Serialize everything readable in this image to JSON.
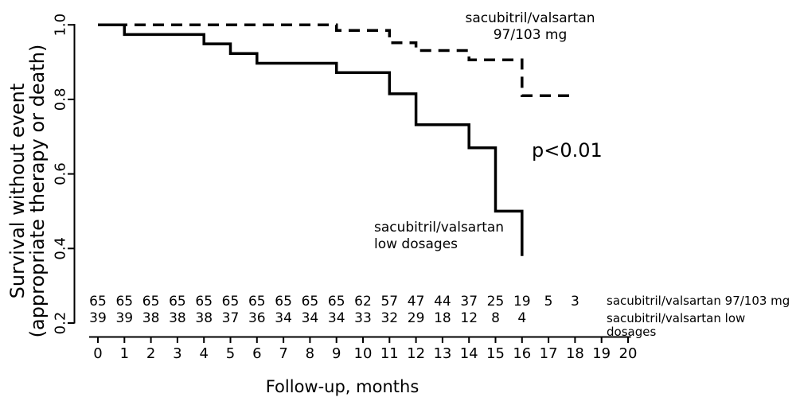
{
  "figure": {
    "background": "#ffffff",
    "ink": "#000000",
    "y_axis": {
      "label_line1": "Survival without event",
      "label_line2": "(appropriate therapy or death)",
      "tick_labels": [
        "1.0",
        "0.8",
        "0.6",
        "0.4",
        "0.2"
      ]
    },
    "x_axis": {
      "label": "Follow-up, months"
    },
    "annotations": {
      "dashed_line1": "sacubitril/valsartan",
      "dashed_line2": "97/103 mg",
      "solid_line1": "sacubitril/valsartan",
      "solid_line2": "low dosages",
      "p_value": "p<0.01"
    },
    "at_risk": {
      "row1_label": "sacubitril/valsartan 97/103 mg",
      "row2_label": "sacubitril/valsartan low dosages"
    }
  },
  "chart_data": {
    "type": "line",
    "subtype": "kaplan_meier_step",
    "title": "",
    "xlabel": "Follow-up, months",
    "ylabel": "Survival without event (appropriate therapy or death)",
    "xlim": [
      0,
      20
    ],
    "ylim": [
      0.2,
      1.0
    ],
    "x_ticks": [
      0,
      1,
      2,
      3,
      4,
      5,
      6,
      7,
      8,
      9,
      10,
      11,
      12,
      13,
      14,
      15,
      16,
      17,
      18,
      19,
      20
    ],
    "y_ticks": [
      1.0,
      0.8,
      0.6,
      0.4,
      0.2
    ],
    "grid": false,
    "legend_position": "inline-annotations",
    "p_value": "p<0.01",
    "series": [
      {
        "name": "sacubitril/valsartan 97/103 mg",
        "line_style": "dashed",
        "color": "#000000",
        "steps": [
          [
            0,
            1.0
          ],
          [
            9,
            0.985
          ],
          [
            11,
            0.952
          ],
          [
            12,
            0.931
          ],
          [
            14,
            0.906
          ],
          [
            16,
            0.81
          ]
        ],
        "end_month": 18
      },
      {
        "name": "sacubitril/valsartan low dosages",
        "line_style": "solid",
        "color": "#000000",
        "steps": [
          [
            0,
            1.0
          ],
          [
            1,
            0.974
          ],
          [
            4,
            0.949
          ],
          [
            5,
            0.923
          ],
          [
            6,
            0.897
          ],
          [
            9,
            0.872
          ],
          [
            11,
            0.815
          ],
          [
            12,
            0.732
          ],
          [
            14,
            0.67
          ],
          [
            15,
            0.5
          ],
          [
            16,
            0.38
          ]
        ],
        "end_month": 16
      }
    ],
    "at_risk_table": {
      "start_month": 0,
      "rows": [
        {
          "label": "sacubitril/valsartan 97/103 mg",
          "values": [
            65,
            65,
            65,
            65,
            65,
            65,
            65,
            65,
            65,
            65,
            62,
            57,
            47,
            44,
            37,
            25,
            19,
            5,
            3
          ]
        },
        {
          "label": "sacubitril/valsartan low dosages",
          "values": [
            39,
            39,
            38,
            38,
            38,
            37,
            36,
            34,
            34,
            34,
            33,
            32,
            29,
            18,
            12,
            8,
            4
          ]
        }
      ]
    }
  }
}
